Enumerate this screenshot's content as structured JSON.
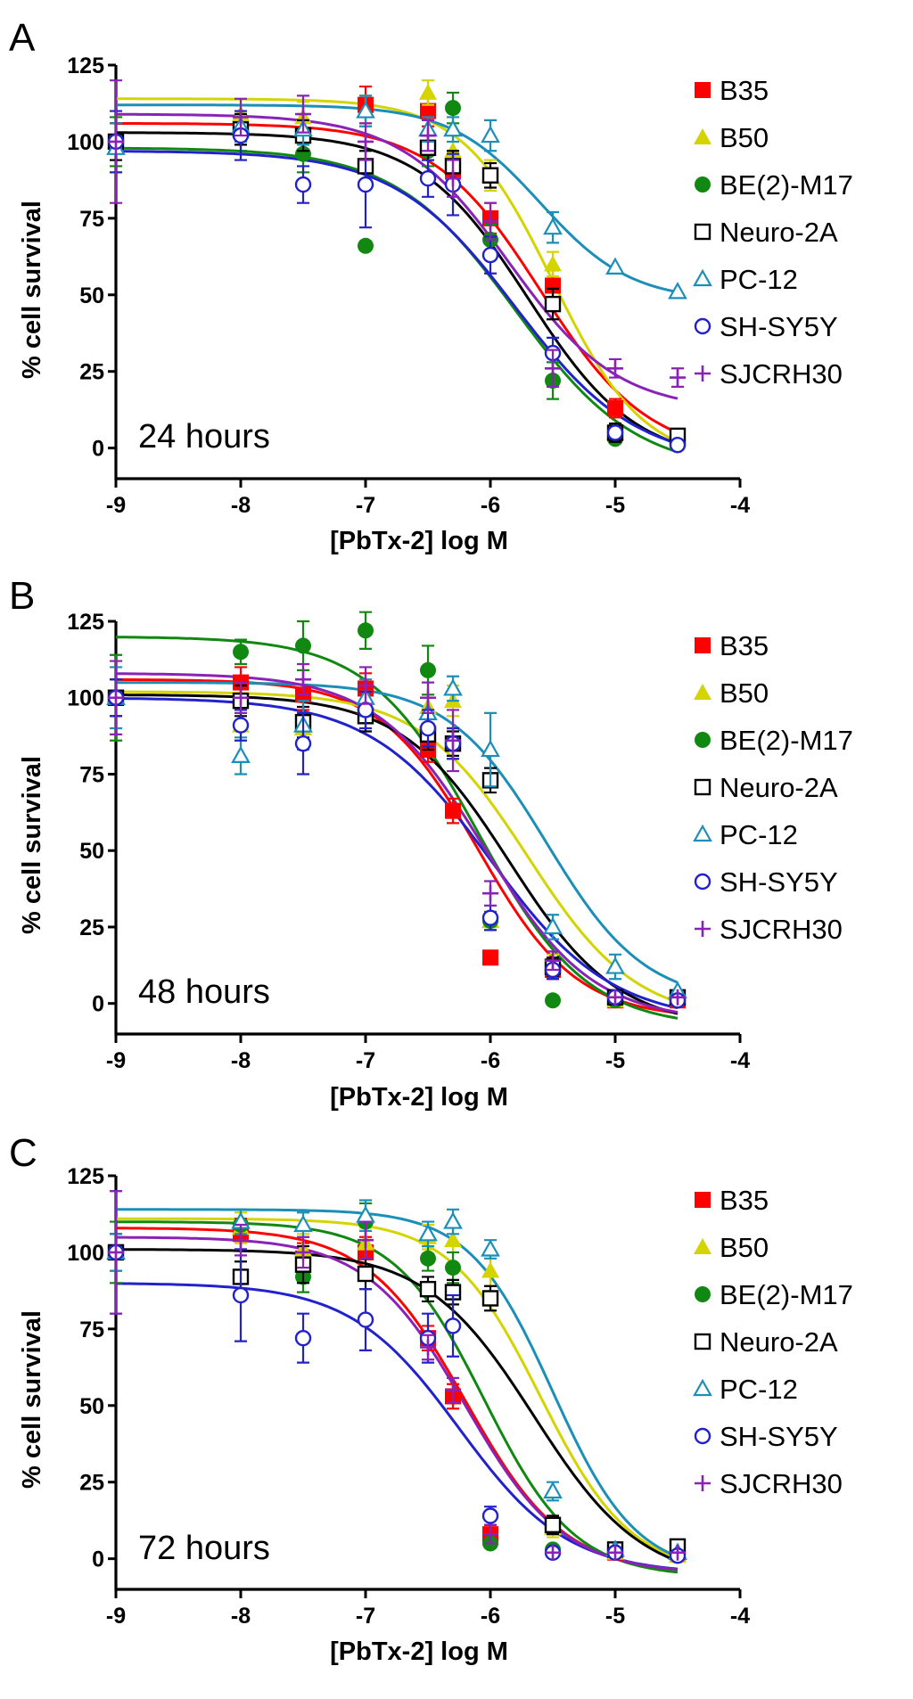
{
  "series_styles": [
    {
      "name": "B35",
      "color": "#ff0000",
      "marker": "filled-square"
    },
    {
      "name": "B50",
      "color": "#d4d400",
      "marker": "filled-triangle"
    },
    {
      "name": "BE(2)-M17",
      "color": "#118811",
      "marker": "filled-circle"
    },
    {
      "name": "Neuro-2A",
      "color": "#000000",
      "marker": "open-square"
    },
    {
      "name": "PC-12",
      "color": "#1b8fb8",
      "marker": "open-triangle"
    },
    {
      "name": "SH-SY5Y",
      "color": "#2222cc",
      "marker": "open-circle"
    },
    {
      "name": "SJCRH30",
      "color": "#8a22b8",
      "marker": "plus"
    }
  ],
  "chart_data": [
    {
      "type": "scatter",
      "panel": "A",
      "annotation": "24 hours",
      "xlabel": "[PbTx-2] log M",
      "ylabel": "% cell survival",
      "xlim": [
        -9,
        -4
      ],
      "ylim": [
        -10,
        125
      ],
      "xticks": [
        "-9",
        "-8",
        "-7",
        "-6",
        "-5",
        "-4"
      ],
      "yticks": [
        "0",
        "25",
        "50",
        "75",
        "100",
        "125"
      ],
      "legend": "top-right",
      "x": [
        -9,
        -8,
        -7.5,
        -7,
        -6.5,
        -6.3,
        -6,
        -5.5,
        -5,
        -4.5
      ],
      "series": [
        {
          "name": "B35",
          "values": [
            100,
            104,
            102,
            112,
            110,
            91,
            75,
            53,
            13,
            3
          ],
          "errors": [
            6,
            5,
            5,
            6,
            5,
            6,
            5,
            5,
            3,
            2
          ],
          "fit": {
            "top": 106,
            "bottom": -3,
            "logEC50": -5.6,
            "hill": 1.0
          }
        },
        {
          "name": "B50",
          "values": [
            100,
            109,
            108,
            110,
            116,
            97,
            89,
            60,
            5,
            3
          ],
          "errors": [
            8,
            5,
            5,
            5,
            4,
            5,
            5,
            4,
            3,
            2
          ],
          "fit": {
            "top": 114,
            "bottom": -5,
            "logEC50": -5.5,
            "hill": 1.2
          }
        },
        {
          "name": "BE(2)-M17",
          "values": [
            100,
            103,
            96,
            66,
            97,
            111,
            68,
            22,
            3,
            2
          ],
          "errors": [
            8,
            6,
            6,
            2,
            5,
            5,
            5,
            6,
            2,
            2
          ],
          "fit": {
            "top": 98,
            "bottom": -8,
            "logEC50": -5.8,
            "hill": 0.9
          }
        },
        {
          "name": "Neuro-2A",
          "values": [
            100,
            104,
            102,
            92,
            98,
            92,
            89,
            47,
            5,
            4
          ],
          "errors": [
            6,
            5,
            5,
            5,
            4,
            5,
            4,
            5,
            3,
            2
          ],
          "fit": {
            "top": 103,
            "bottom": -5,
            "logEC50": -5.7,
            "hill": 1.0
          }
        },
        {
          "name": "PC-12",
          "values": [
            98,
            105,
            104,
            110,
            104,
            104,
            102,
            72,
            59,
            51
          ],
          "errors": [
            8,
            5,
            5,
            5,
            4,
            4,
            5,
            5,
            2,
            2
          ],
          "fit": {
            "top": 112,
            "bottom": 48,
            "logEC50": -5.6,
            "hill": 1.2
          }
        },
        {
          "name": "SH-SY5Y",
          "values": [
            100,
            102,
            86,
            86,
            88,
            86,
            63,
            31,
            5,
            1
          ],
          "errors": [
            10,
            8,
            6,
            14,
            6,
            10,
            6,
            5,
            2,
            2
          ],
          "fit": {
            "top": 97,
            "bottom": -5,
            "logEC50": -5.8,
            "hill": 0.9
          }
        },
        {
          "name": "SJCRH30",
          "values": [
            100,
            108,
            109,
            100,
            102,
            88,
            74,
            26,
            26,
            23
          ],
          "errors": [
            20,
            6,
            6,
            6,
            5,
            6,
            6,
            6,
            3,
            3
          ],
          "fit": {
            "top": 109,
            "bottom": 12,
            "logEC50": -5.85,
            "hill": 1.0
          }
        }
      ]
    },
    {
      "type": "scatter",
      "panel": "B",
      "annotation": "48 hours",
      "xlabel": "[PbTx-2] log M",
      "ylabel": "% cell survival",
      "xlim": [
        -9,
        -4
      ],
      "ylim": [
        -10,
        125
      ],
      "xticks": [
        "-9",
        "-8",
        "-7",
        "-6",
        "-5",
        "-4"
      ],
      "yticks": [
        "0",
        "25",
        "50",
        "75",
        "100",
        "125"
      ],
      "legend": "top-right",
      "x": [
        -9,
        -8,
        -7.5,
        -7,
        -6.5,
        -6.3,
        -6,
        -5.5,
        -5,
        -4.5
      ],
      "series": [
        {
          "name": "B35",
          "values": [
            100,
            105,
            101,
            103,
            83,
            63,
            15,
            11,
            1,
            1
          ],
          "errors": [
            6,
            5,
            5,
            5,
            4,
            4,
            2,
            3,
            2,
            2
          ],
          "fit": {
            "top": 106,
            "bottom": -5,
            "logEC50": -6.1,
            "hill": 1.1
          }
        },
        {
          "name": "B50",
          "values": [
            100,
            91,
            90,
            97,
            97,
            99,
            27,
            13,
            1,
            2
          ],
          "errors": [
            6,
            5,
            5,
            5,
            4,
            5,
            3,
            3,
            2,
            2
          ],
          "fit": {
            "top": 102,
            "bottom": -6,
            "logEC50": -5.7,
            "hill": 1.0
          }
        },
        {
          "name": "BE(2)-M17",
          "values": [
            100,
            115,
            117,
            122,
            109,
            85,
            27,
            1,
            1,
            1
          ],
          "errors": [
            14,
            4,
            8,
            6,
            8,
            5,
            3,
            2,
            2,
            2
          ],
          "fit": {
            "top": 120,
            "bottom": -8,
            "logEC50": -6.1,
            "hill": 1.0
          }
        },
        {
          "name": "Neuro-2A",
          "values": [
            100,
            99,
            92,
            94,
            88,
            85,
            73,
            12,
            2,
            2
          ],
          "errors": [
            6,
            5,
            5,
            5,
            5,
            4,
            4,
            3,
            2,
            2
          ],
          "fit": {
            "top": 101,
            "bottom": -8,
            "logEC50": -5.85,
            "hill": 1.0
          }
        },
        {
          "name": "PC-12",
          "values": [
            100,
            81,
            91,
            100,
            95,
            103,
            83,
            25,
            12,
            4
          ],
          "errors": [
            10,
            6,
            8,
            6,
            5,
            4,
            12,
            4,
            4,
            2
          ],
          "fit": {
            "top": 105,
            "bottom": 0,
            "logEC50": -5.55,
            "hill": 1.1
          }
        },
        {
          "name": "SH-SY5Y",
          "values": [
            100,
            91,
            85,
            96,
            90,
            85,
            28,
            11,
            2,
            1
          ],
          "errors": [
            6,
            5,
            10,
            6,
            6,
            5,
            4,
            3,
            2,
            2
          ],
          "fit": {
            "top": 100,
            "bottom": -6,
            "logEC50": -6.0,
            "hill": 0.9
          }
        },
        {
          "name": "SJCRH30",
          "values": [
            100,
            100,
            106,
            104,
            100,
            86,
            36,
            14,
            2,
            2
          ],
          "errors": [
            12,
            5,
            5,
            6,
            5,
            10,
            4,
            3,
            2,
            2
          ],
          "fit": {
            "top": 108,
            "bottom": -6,
            "logEC50": -6.05,
            "hill": 1.0
          }
        }
      ]
    },
    {
      "type": "scatter",
      "panel": "C",
      "annotation": "72 hours",
      "xlabel": "[PbTx-2] log M",
      "ylabel": "% cell survival",
      "xlim": [
        -9,
        -4
      ],
      "ylim": [
        -10,
        125
      ],
      "xticks": [
        "-9",
        "-8",
        "-7",
        "-6",
        "-5",
        "-4"
      ],
      "yticks": [
        "0",
        "25",
        "50",
        "75",
        "100",
        "125"
      ],
      "legend": "top-right",
      "x": [
        -9,
        -8,
        -7.5,
        -7,
        -6.5,
        -6.3,
        -6,
        -5.5,
        -5,
        -4.5
      ],
      "series": [
        {
          "name": "B35",
          "values": [
            100,
            106,
            98,
            100,
            72,
            53,
            8,
            11,
            2,
            2
          ],
          "errors": [
            6,
            5,
            5,
            5,
            4,
            4,
            3,
            3,
            2,
            2
          ],
          "fit": {
            "top": 108,
            "bottom": -5,
            "logEC50": -6.2,
            "hill": 1.1
          }
        },
        {
          "name": "B50",
          "values": [
            100,
            108,
            101,
            103,
            105,
            104,
            94,
            10,
            2,
            1
          ],
          "errors": [
            6,
            5,
            5,
            5,
            4,
            4,
            5,
            3,
            2,
            2
          ],
          "fit": {
            "top": 111,
            "bottom": -5,
            "logEC50": -5.6,
            "hill": 1.2
          }
        },
        {
          "name": "BE(2)-M17",
          "values": [
            100,
            109,
            92,
            110,
            98,
            95,
            5,
            3,
            2,
            2
          ],
          "errors": [
            10,
            5,
            5,
            6,
            4,
            5,
            2,
            2,
            2,
            2
          ],
          "fit": {
            "top": 110,
            "bottom": -6,
            "logEC50": -6.05,
            "hill": 1.2
          }
        },
        {
          "name": "Neuro-2A",
          "values": [
            100,
            92,
            96,
            93,
            88,
            87,
            85,
            11,
            3,
            4
          ],
          "errors": [
            6,
            5,
            6,
            5,
            4,
            4,
            4,
            3,
            2,
            2
          ],
          "fit": {
            "top": 101,
            "bottom": -8,
            "logEC50": -5.65,
            "hill": 1.0
          }
        },
        {
          "name": "PC-12",
          "values": [
            100,
            110,
            109,
            112,
            106,
            110,
            101,
            22,
            3,
            2
          ],
          "errors": [
            6,
            4,
            4,
            5,
            4,
            4,
            3,
            3,
            2,
            2
          ],
          "fit": {
            "top": 114,
            "bottom": -5,
            "logEC50": -5.5,
            "hill": 1.3
          }
        },
        {
          "name": "SH-SY5Y",
          "values": [
            100,
            86,
            72,
            78,
            72,
            76,
            14,
            2,
            2,
            1
          ],
          "errors": [
            20,
            15,
            8,
            10,
            8,
            10,
            3,
            2,
            2,
            2
          ],
          "fit": {
            "top": 90,
            "bottom": -5,
            "logEC50": -6.25,
            "hill": 1.0
          }
        },
        {
          "name": "SJCRH30",
          "values": [
            100,
            104,
            100,
            104,
            69,
            55,
            8,
            2,
            2,
            2
          ],
          "errors": [
            20,
            5,
            5,
            6,
            4,
            4,
            3,
            2,
            2,
            2
          ],
          "fit": {
            "top": 105,
            "bottom": -5,
            "logEC50": -6.2,
            "hill": 1.1
          }
        }
      ]
    }
  ]
}
